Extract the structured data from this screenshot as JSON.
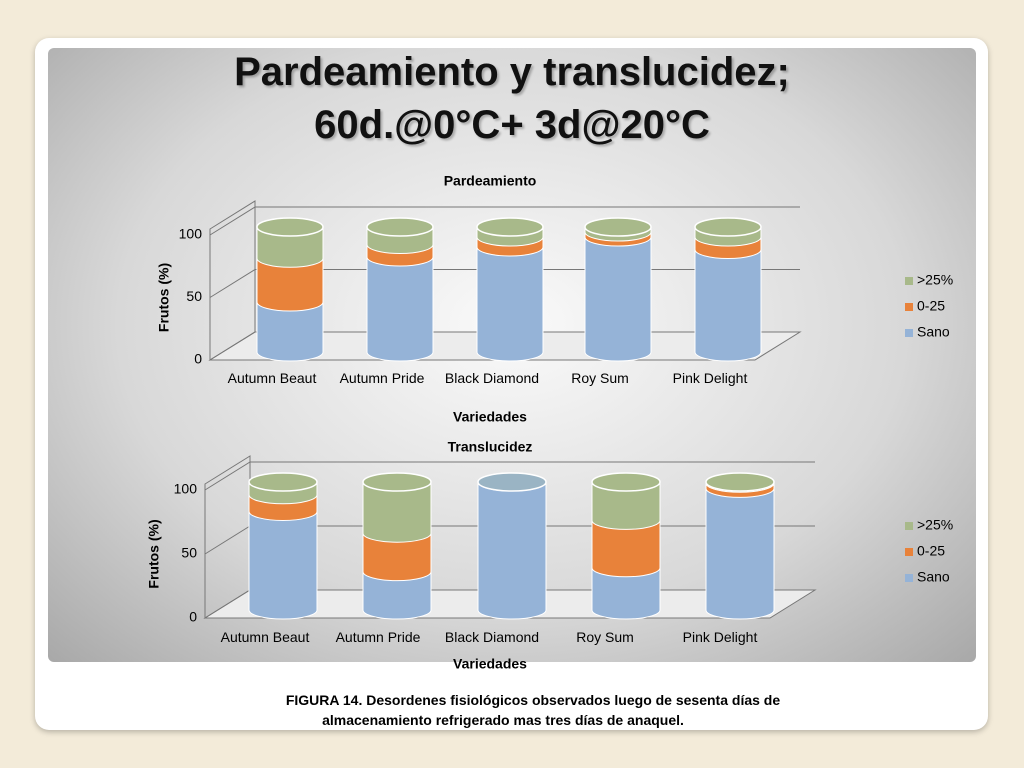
{
  "slide": {
    "title": [
      "Pardeamiento y translucidez;",
      "60d.@0°C+ 3d@20°C"
    ],
    "caption": [
      "FIGURA 14. Desordenes fisiológicos observados luego de sesenta días  de",
      "almacenamiento refrigerado mas tres días de anaquel."
    ]
  },
  "chart_data": [
    {
      "type": "stacked-cylinder",
      "title": "Pardeamiento",
      "x_label": "Variedades",
      "y_label": "Frutos (%)",
      "categories": [
        "Autumn Beaut",
        "Autumn Pride",
        "Black Diamond",
        "Roy Sum",
        "Pink Delight"
      ],
      "series": [
        {
          "name": "Sano",
          "color": "#95b3d7",
          "values": [
            40,
            76,
            84,
            92,
            82
          ]
        },
        {
          "name": "0-25",
          "color": "#e8823a",
          "values": [
            35,
            10,
            8,
            4,
            10
          ]
        },
        {
          "name": ">25%",
          "color": "#a8b98a",
          "values": [
            25,
            14,
            8,
            4,
            8
          ]
        }
      ],
      "ylim": [
        0,
        100
      ],
      "yticks": [
        0,
        50,
        100
      ],
      "grid": true,
      "legend": "right"
    },
    {
      "type": "stacked-cylinder",
      "title": "Translucidez",
      "x_label": "Variedades",
      "y_label": "Frutos (%)",
      "categories": [
        "Autumn Beaut",
        "Autumn Pride",
        "Black Diamond",
        "Roy Sum",
        "Pink Delight"
      ],
      "series": [
        {
          "name": "Sano",
          "color": "#95b3d7",
          "values": [
            77,
            30,
            100,
            33,
            95
          ]
        },
        {
          "name": "0-25",
          "color": "#e8823a",
          "values": [
            13,
            30,
            0,
            37,
            4
          ]
        },
        {
          "name": ">25%",
          "color": "#a8b98a",
          "values": [
            10,
            40,
            0,
            30,
            1
          ]
        }
      ],
      "ylim": [
        0,
        100
      ],
      "yticks": [
        0,
        50,
        100
      ],
      "grid": true,
      "legend": "right"
    }
  ]
}
